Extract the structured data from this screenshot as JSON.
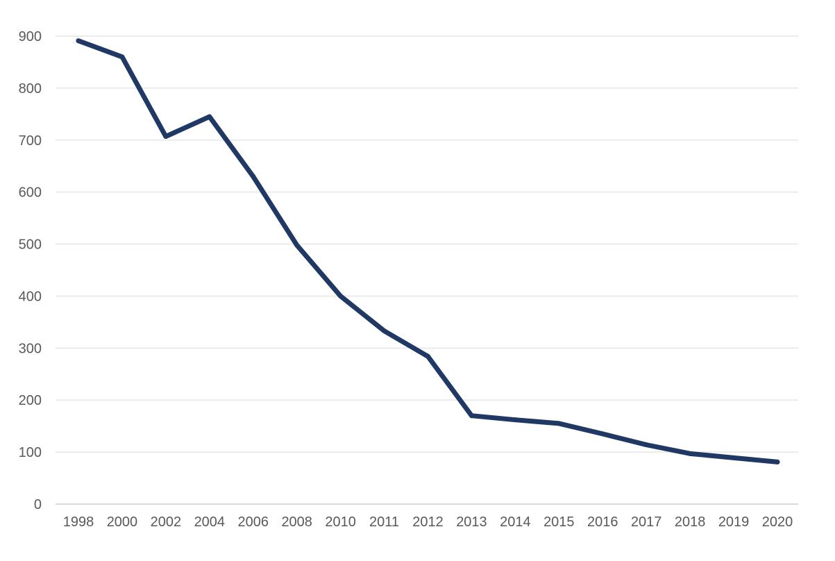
{
  "colors": {
    "line": "#1f3864",
    "grid": "#ebebeb",
    "axis": "#d9d9d9",
    "text": "#595959",
    "background": "#ffffff"
  },
  "chart_data": {
    "type": "line",
    "title": "",
    "xlabel": "",
    "ylabel": "",
    "ylim": [
      0,
      900
    ],
    "yticks": [
      0,
      100,
      200,
      300,
      400,
      500,
      600,
      700,
      800,
      900
    ],
    "grid": true,
    "legend": "none",
    "categories": [
      "1998",
      "2000",
      "2002",
      "2004",
      "2006",
      "2008",
      "2010",
      "2011",
      "2012",
      "2013",
      "2014",
      "2015",
      "2016",
      "2017",
      "2018",
      "2019",
      "2020"
    ],
    "series": [
      {
        "values": [
          891,
          860,
          707,
          745,
          630,
          498,
          400,
          333,
          284,
          170,
          162,
          155,
          135,
          114,
          97,
          89,
          81
        ]
      }
    ]
  }
}
